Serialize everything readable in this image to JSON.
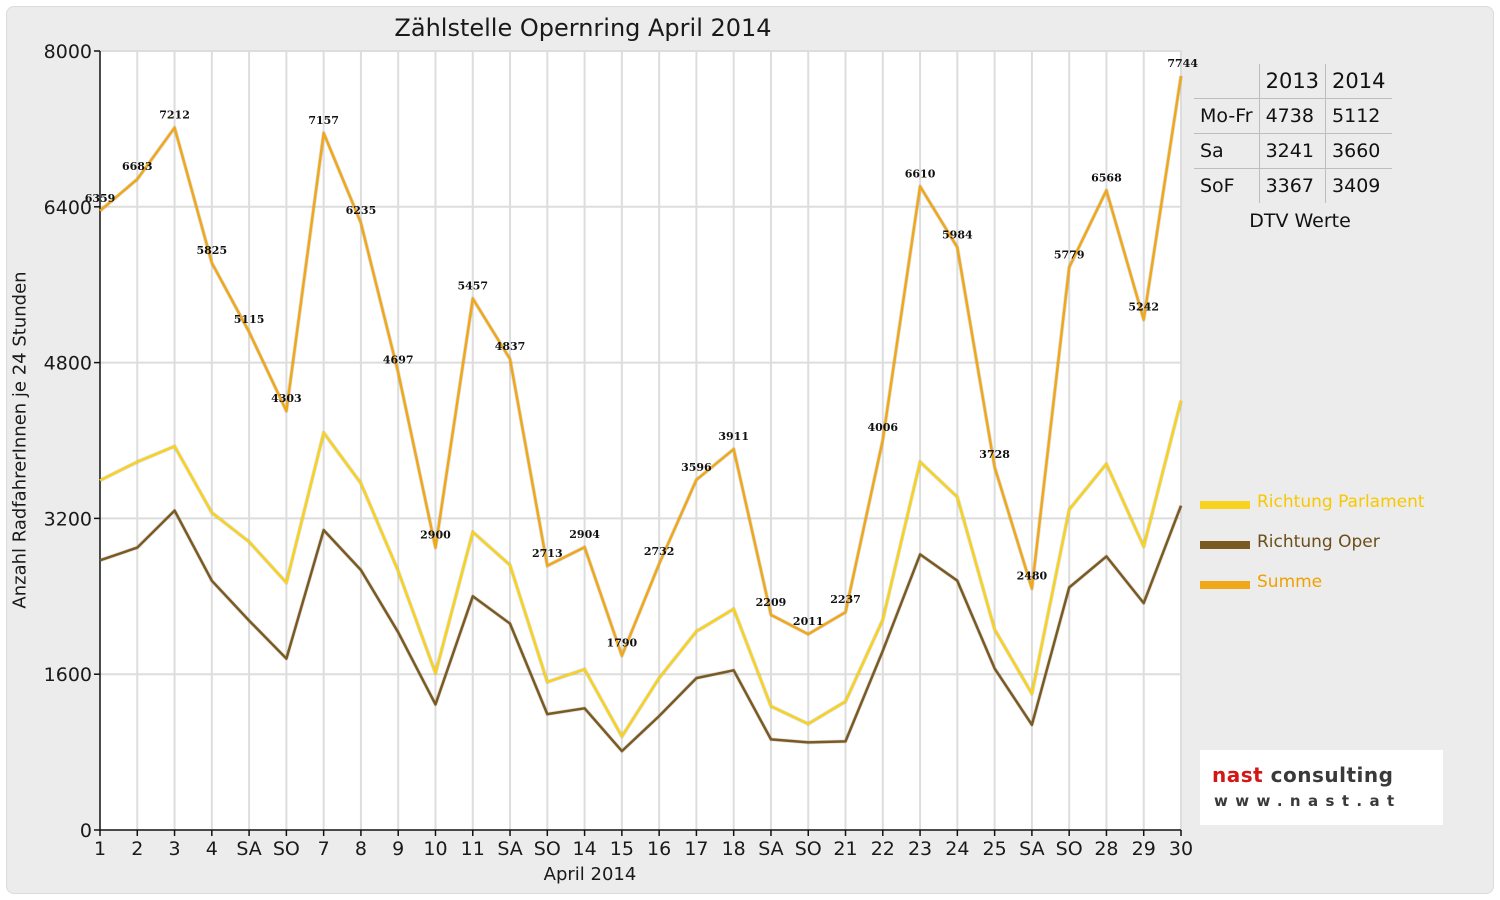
{
  "title": "Zählstelle Opernring April 2014",
  "chart_data": {
    "type": "line",
    "title": "Zählstelle Opernring April 2014",
    "xlabel": "April 2014",
    "ylabel": "Anzahl RadfahrerInnen je 24 Stunden",
    "ylim": [
      0,
      8000
    ],
    "yticks": [
      0,
      1600,
      3200,
      4800,
      6400,
      8000
    ],
    "grid": true,
    "legend_position": "right",
    "categories": [
      "1",
      "2",
      "3",
      "4",
      "SA",
      "SO",
      "7",
      "8",
      "9",
      "10",
      "11",
      "SA",
      "SO",
      "14",
      "15",
      "16",
      "17",
      "18",
      "SA",
      "SO",
      "21",
      "22",
      "23",
      "24",
      "25",
      "SA",
      "SO",
      "28",
      "29",
      "30"
    ],
    "category_colors": [
      "#111111",
      "#111111",
      "#111111",
      "#111111",
      "#111111",
      "#e00000",
      "#111111",
      "#111111",
      "#111111",
      "#111111",
      "#111111",
      "#111111",
      "#e00000",
      "#111111",
      "#111111",
      "#111111",
      "#111111",
      "#111111",
      "#111111",
      "#e00000",
      "#e00000",
      "#111111",
      "#111111",
      "#111111",
      "#111111",
      "#111111",
      "#e00000",
      "#111111",
      "#111111",
      "#111111"
    ],
    "series": [
      {
        "name": "Richtung Parlament",
        "color": "#f7d21e",
        "values": [
          3590,
          3780,
          3940,
          3260,
          2960,
          2540,
          4080,
          3560,
          2660,
          1610,
          3060,
          2720,
          1520,
          1650,
          960,
          1560,
          2040,
          2270,
          1270,
          1090,
          1320,
          2160,
          3780,
          3420,
          2060,
          1400,
          3290,
          3760,
          2910,
          4410
        ]
      },
      {
        "name": "Richtung Oper",
        "color": "#7a5a20",
        "values": [
          2770,
          2900,
          3280,
          2560,
          2150,
          1760,
          3080,
          2670,
          2030,
          1290,
          2400,
          2120,
          1190,
          1250,
          810,
          1170,
          1560,
          1640,
          930,
          900,
          910,
          1840,
          2830,
          2560,
          1660,
          1080,
          2490,
          2810,
          2330,
          3330
        ]
      },
      {
        "name": "Summe",
        "color": "#f0a818",
        "values": [
          6359,
          6683,
          7212,
          5825,
          5115,
          4303,
          7157,
          6235,
          4697,
          2900,
          5457,
          4837,
          2713,
          2904,
          1790,
          2732,
          3596,
          3911,
          2209,
          2011,
          2237,
          4006,
          6610,
          5984,
          3728,
          2480,
          5779,
          6568,
          5242,
          7744
        ]
      }
    ],
    "data_labels": [
      "6359",
      "6683",
      "7212",
      "5825",
      "5115",
      "4303",
      "7157",
      "6235",
      "4697",
      "2900",
      "5457",
      "4837",
      "2713",
      "2904",
      "1790",
      "2732",
      "3596",
      "3911",
      "2209",
      "2011",
      "2237",
      "4006",
      "6610",
      "5984",
      "3728",
      "2480",
      "5779",
      "6568",
      "5242",
      "7744"
    ]
  },
  "legend": [
    {
      "label": "Richtung Parlament",
      "color": "#f7d21e"
    },
    {
      "label": "Richtung Oper",
      "color": "#7a5a20"
    },
    {
      "label": "Summe",
      "color": "#f0a818"
    }
  ],
  "dtv_table": {
    "headers": [
      "2013",
      "2014"
    ],
    "rows": [
      {
        "label": "Mo-Fr",
        "v2013": "4738",
        "v2014": "5112"
      },
      {
        "label": "Sa",
        "v2013": "3241",
        "v2014": "3660"
      },
      {
        "label": "SoF",
        "v2013": "3367",
        "v2014": "3409"
      }
    ],
    "caption": "DTV Werte"
  },
  "logo": {
    "name_part1": "nast",
    "name_part2": " consulting",
    "url": "www.nast.at"
  }
}
